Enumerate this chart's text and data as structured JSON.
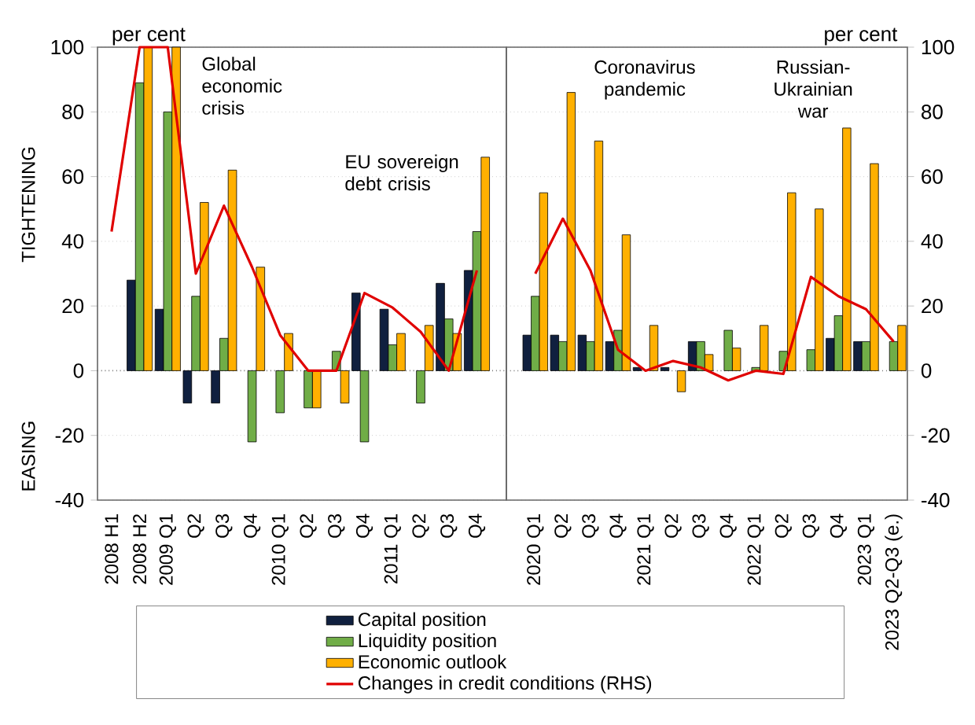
{
  "chart_data": [
    {
      "type": "bar",
      "ylabel": "per cent",
      "ylim": [
        -40,
        100
      ],
      "yticks": [
        -40,
        -20,
        0,
        20,
        40,
        60,
        80,
        100
      ],
      "grid": "y",
      "categories": [
        "2008 H1",
        "2008 H2",
        "2009 Q1",
        "Q2",
        "Q3",
        "Q4",
        "2010 Q1",
        "Q2",
        "Q3",
        "Q4",
        "2011 Q1",
        "Q2",
        "Q3",
        "Q4"
      ],
      "annotations": [
        "Global economic crisis",
        "EU sovereign debt crisis",
        "TIGHTENING",
        "EASING"
      ],
      "ref_lines": [
        {
          "axis": "y",
          "value": 0
        }
      ],
      "series": [
        {
          "color": "#10203f",
          "values": [
            null,
            28,
            19,
            -10,
            -10,
            null,
            null,
            null,
            null,
            24,
            19,
            null,
            27,
            31
          ]
        },
        {
          "color": "#70ad47",
          "values": [
            null,
            89,
            80,
            23,
            10,
            -22,
            -13,
            -11.5,
            6,
            -22,
            8,
            -10,
            16,
            43
          ]
        },
        {
          "color": "#ffb000",
          "values": [
            null,
            100,
            100,
            52,
            62,
            32,
            11.5,
            -11.5,
            -10,
            null,
            11.5,
            14,
            11.5,
            66
          ]
        },
        {
          "type": "line",
          "color": "#e00000",
          "values": [
            43,
            100,
            100,
            30,
            51,
            32,
            11,
            0,
            0,
            24,
            19.5,
            12,
            0,
            31
          ]
        }
      ]
    },
    {
      "type": "bar",
      "ylabel": "per cent",
      "ylim": [
        -40,
        100
      ],
      "yticks": [
        -40,
        -20,
        0,
        20,
        40,
        60,
        80,
        100
      ],
      "grid": "y",
      "legend": "bottom",
      "categories": [
        "2020 Q1",
        "Q2",
        "Q3",
        "Q4",
        "2021 Q1",
        "Q2",
        "Q3",
        "Q4",
        "2022 Q1",
        "Q2",
        "Q3",
        "Q4",
        "2023 Q1",
        "2023 Q2-Q3 (e.)"
      ],
      "annotations": [
        "Coronavirus pandemic",
        "Russian-Ukrainian war"
      ],
      "ref_lines": [
        {
          "axis": "y",
          "value": 0
        }
      ],
      "series": [
        {
          "name": "Capital position",
          "color": "#10203f",
          "values": [
            11,
            11,
            11,
            9,
            1,
            1,
            9,
            null,
            null,
            null,
            null,
            10,
            9,
            null
          ]
        },
        {
          "name": "Liquidity position",
          "color": "#70ad47",
          "values": [
            23,
            9,
            9,
            12.5,
            null,
            null,
            9,
            12.5,
            1,
            6,
            6.5,
            17,
            9,
            9
          ]
        },
        {
          "name": "Economic outlook",
          "color": "#ffb000",
          "values": [
            55,
            86,
            71,
            42,
            14,
            -6.5,
            5,
            7,
            14,
            55,
            50,
            75,
            64,
            14
          ]
        },
        {
          "type": "line",
          "name": "Changes in credit conditions (RHS)",
          "color": "#e00000",
          "values": [
            30,
            47,
            31,
            6.5,
            0,
            3,
            1,
            -3,
            0,
            -1,
            29,
            23,
            19,
            9
          ]
        }
      ]
    }
  ]
}
